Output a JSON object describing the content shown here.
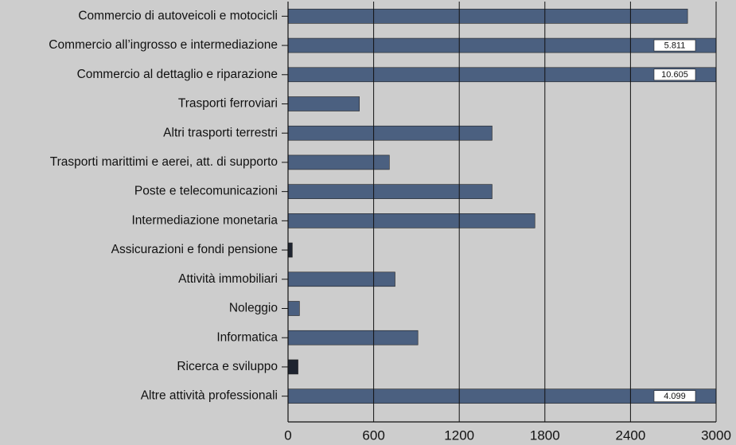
{
  "chart_data": {
    "type": "bar",
    "orientation": "horizontal",
    "categories": [
      "Commercio di autoveicoli e motocicli",
      "Commercio all’ingrosso e intermediazione",
      "Commercio al dettaglio e riparazione",
      "Trasporti ferroviari",
      "Altri trasporti terrestri",
      "Trasporti marittimi e aerei, att. di supporto",
      "Poste e telecomunicazioni",
      "Intermediazione monetaria",
      "Assicurazioni e fondi pensione",
      "Attività immobiliari",
      "Noleggio",
      "Informatica",
      "Ricerca e sviluppo",
      "Altre attività professionali"
    ],
    "values": [
      2800,
      5811,
      10605,
      500,
      1430,
      710,
      1430,
      1730,
      30,
      750,
      80,
      910,
      70,
      4099
    ],
    "value_labels": [
      null,
      "5.811",
      "10.605",
      null,
      null,
      null,
      null,
      null,
      null,
      null,
      null,
      null,
      null,
      "4.099"
    ],
    "colors": [
      "#4b6080",
      "#4b6080",
      "#4b6080",
      "#4b6080",
      "#4b6080",
      "#4b6080",
      "#4b6080",
      "#4b6080",
      "#1e2430",
      "#4b6080",
      "#4b6080",
      "#4b6080",
      "#1e2430",
      "#4b6080"
    ],
    "xlim": [
      0,
      3000
    ],
    "xticks": [
      0,
      600,
      1200,
      1800,
      2400,
      3000
    ],
    "grid": true
  }
}
